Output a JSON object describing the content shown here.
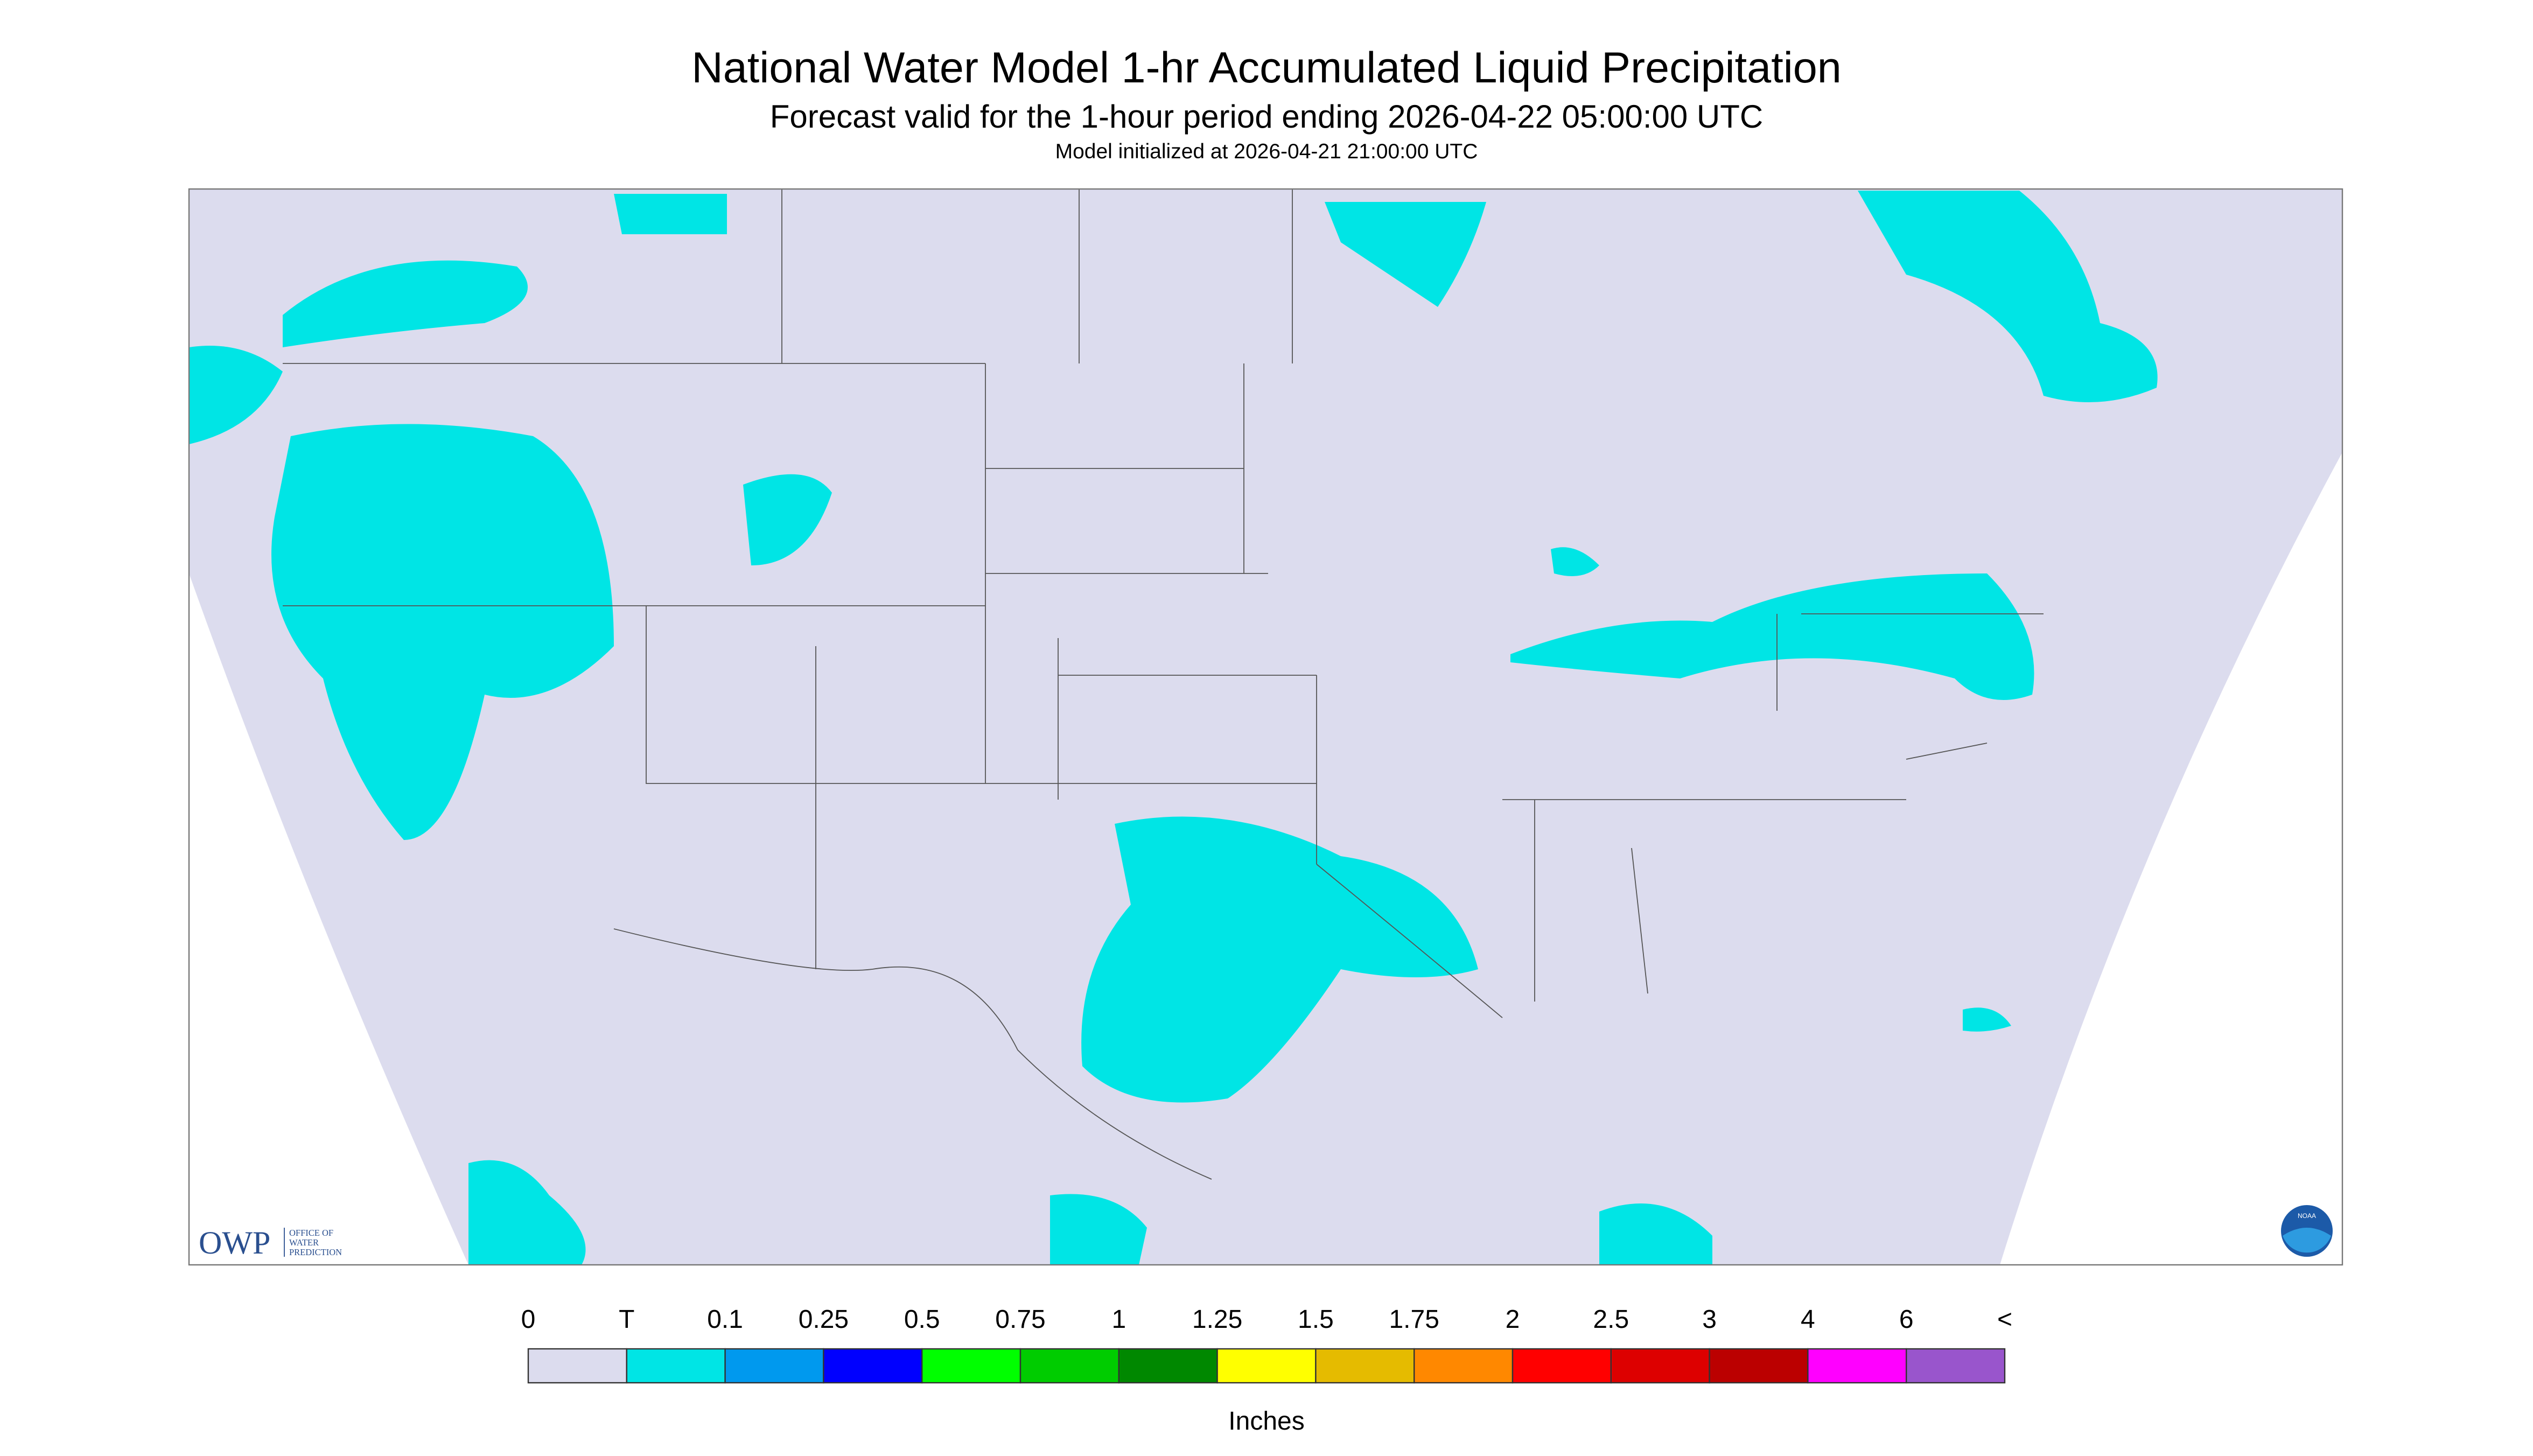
{
  "header": {
    "title": "National Water Model 1-hr Accumulated Liquid Precipitation",
    "subtitle": "Forecast valid for the 1-hour period ending 2026-04-22 05:00:00 UTC",
    "init": "Model initialized at 2026-04-21 21:00:00 UTC"
  },
  "logos": {
    "owp": "OWP",
    "owp_lines": [
      "OFFICE OF",
      "WATER",
      "PREDICTION"
    ],
    "noaa": "NOAA"
  },
  "legend": {
    "labels": [
      "0",
      "T",
      "0.1",
      "0.25",
      "0.5",
      "0.75",
      "1",
      "1.25",
      "1.5",
      "1.75",
      "2",
      "2.5",
      "3",
      "4",
      "6",
      "<"
    ],
    "colors": [
      "#dcdcee",
      "#00e5e5",
      "#0099ee",
      "#0000ff",
      "#00ff00",
      "#00cc00",
      "#008800",
      "#ffff00",
      "#e5bb00",
      "#ff8800",
      "#ff0000",
      "#dd0000",
      "#bb0000",
      "#ff00ff",
      "#9955cc"
    ],
    "units": "Inches"
  }
}
